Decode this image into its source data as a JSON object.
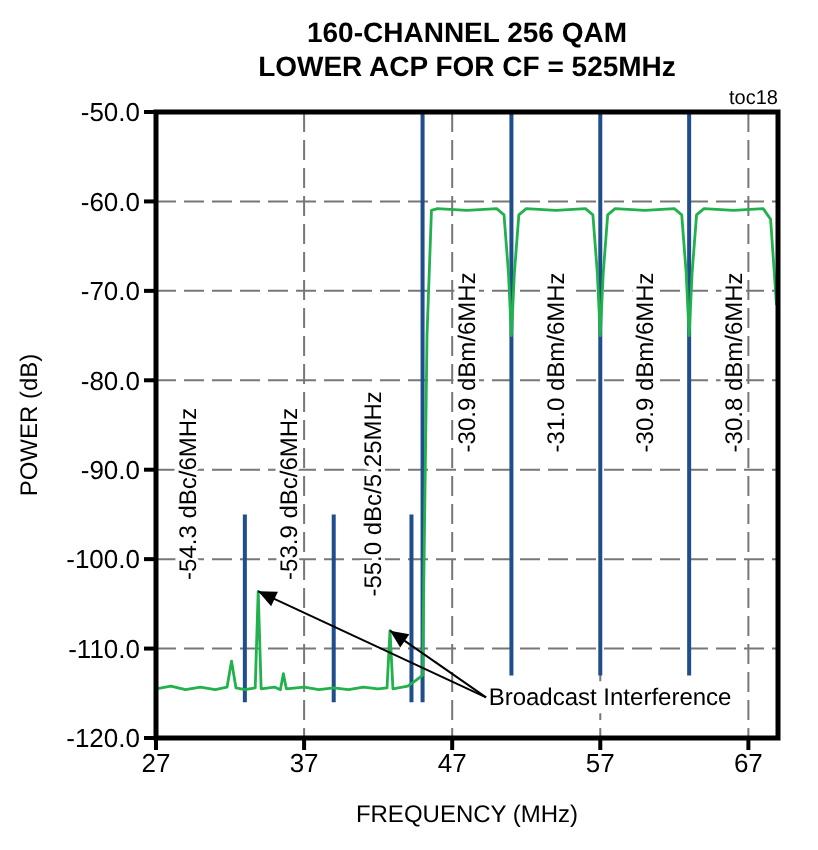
{
  "chart_data": {
    "type": "line",
    "title": "160-CHANNEL 256 QAM",
    "subtitle": "LOWER ACP FOR CF = 525MHz",
    "xlabel": "FREQUENCY (MHz)",
    "ylabel": "POWER (dB)",
    "xlim": [
      27,
      69
    ],
    "xticks": [
      27,
      37,
      47,
      57,
      67
    ],
    "ylim": [
      -120,
      -50
    ],
    "yticks": [
      {
        "value": -120,
        "label": "-120.0"
      },
      {
        "value": -110,
        "label": "-110.0"
      },
      {
        "value": -100,
        "label": "-100.0"
      },
      {
        "value": -90,
        "label": "-90.0"
      },
      {
        "value": -80,
        "label": "-80.0"
      },
      {
        "value": -70,
        "label": "-70.0"
      },
      {
        "value": -60,
        "label": "-60.0"
      },
      {
        "value": -50,
        "label": "-50.0"
      }
    ],
    "grid": true,
    "series": [
      {
        "color": "#1f4e8c",
        "x": [
          33,
          33
        ],
        "values": [
          -95,
          -116
        ]
      },
      {
        "color": "#1f4e8c",
        "x": [
          39,
          39
        ],
        "values": [
          -95,
          -116
        ]
      },
      {
        "color": "#1f4e8c",
        "x": [
          44.25,
          44.25
        ],
        "values": [
          -95,
          -116
        ]
      },
      {
        "color": "#1f4e8c",
        "x": [
          45,
          45
        ],
        "values": [
          -50,
          -116
        ]
      },
      {
        "color": "#1f4e8c",
        "x": [
          51,
          51
        ],
        "values": [
          -50,
          -113
        ]
      },
      {
        "color": "#1f4e8c",
        "x": [
          57,
          57
        ],
        "values": [
          -50,
          -113
        ]
      },
      {
        "color": "#1f4e8c",
        "x": [
          63,
          63
        ],
        "values": [
          -50,
          -113
        ]
      },
      {
        "color": "#22b14c",
        "x": [
          27,
          28,
          29,
          30,
          31,
          31.8,
          32.1,
          32.4,
          33,
          33.7,
          33.9,
          34.1,
          35,
          35.4,
          35.6,
          35.8,
          37,
          38,
          39,
          40,
          41,
          42,
          42.6,
          42.8,
          43,
          44,
          44.5,
          45,
          45.3,
          45.6,
          46,
          48,
          50,
          50.5,
          50.8,
          51,
          51.2,
          51.5,
          52,
          54,
          56,
          56.5,
          56.8,
          57,
          57.2,
          57.5,
          58,
          60,
          62,
          62.5,
          62.8,
          63,
          63.2,
          63.5,
          64,
          66,
          68,
          68.5,
          68.9
        ],
        "values": [
          -114.5,
          -114.2,
          -114.6,
          -114.3,
          -114.6,
          -114.3,
          -111.4,
          -114.4,
          -114.6,
          -114.4,
          -103.6,
          -114.5,
          -114.3,
          -114.6,
          -112.8,
          -114.5,
          -114.3,
          -114.6,
          -114.4,
          -114.6,
          -114.3,
          -114.5,
          -114.4,
          -108,
          -114.5,
          -114.2,
          -113.6,
          -113,
          -75,
          -61,
          -60.8,
          -61,
          -60.8,
          -61.5,
          -68,
          -75,
          -68,
          -61.5,
          -60.8,
          -61,
          -60.8,
          -61.5,
          -68,
          -75,
          -68,
          -61.5,
          -60.8,
          -61,
          -60.8,
          -61.5,
          -68,
          -75,
          -68,
          -61.5,
          -60.8,
          -61,
          -60.8,
          -62,
          -71.6
        ]
      }
    ],
    "annotations": [
      "toc18",
      "-54.3 dBc/6MHz",
      "-53.9 dBc/6MHz",
      "-55.0 dBc/5.25MHz",
      "-30.9 dBm/6MHz",
      "-31.0 dBm/6MHz",
      "-30.9 dBm/6MHz",
      "-30.8 dBm/6MHz",
      {
        "text": "Broadcast Interference",
        "x": 33.9,
        "y": -103.6
      }
    ]
  }
}
